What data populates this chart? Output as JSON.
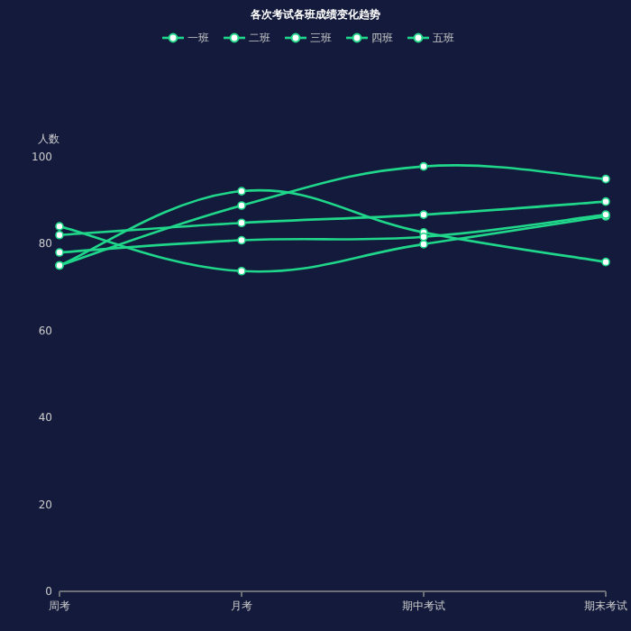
{
  "chart_data": {
    "type": "line",
    "title": "各次考试各班成绩变化趋势",
    "ylabel": "人数",
    "categories": [
      "周考",
      "月考",
      "期中考试",
      "期末考试"
    ],
    "series": [
      {
        "name": "一班",
        "color": "#1fd68a",
        "values": [
          84,
          73.7,
          79.9,
          86.3
        ]
      },
      {
        "name": "二班",
        "color": "#1fd68a",
        "values": [
          75,
          92.1,
          82.6,
          75.8
        ]
      },
      {
        "name": "三班",
        "color": "#1fd68a",
        "values": [
          75,
          88.8,
          97.8,
          94.9
        ]
      },
      {
        "name": "四班",
        "color": "#1fd68a",
        "values": [
          82,
          84.8,
          86.7,
          89.7
        ]
      },
      {
        "name": "五班",
        "color": "#1fd68a",
        "values": [
          78,
          80.8,
          81.6,
          86.7
        ]
      }
    ],
    "ylim": [
      0,
      100
    ],
    "yticks": [
      0,
      20,
      40,
      60,
      80,
      100
    ],
    "legend": "top",
    "marker": "circle",
    "grid": false
  }
}
